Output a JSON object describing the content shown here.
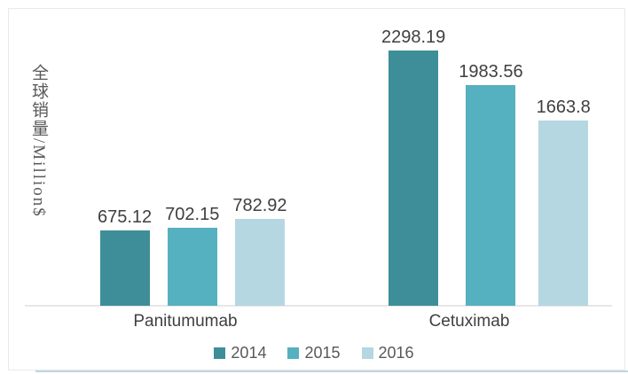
{
  "chart_data": {
    "type": "bar",
    "title": "",
    "ylabel": "全球销量/Million$",
    "xlabel": "",
    "categories": [
      "Panitumumab",
      "Cetuximab"
    ],
    "series": [
      {
        "name": "2014",
        "color": "#3e8e99",
        "values": [
          675.12,
          2298.19
        ],
        "labels": [
          "675.12",
          "2298.19"
        ]
      },
      {
        "name": "2015",
        "color": "#55b0bf",
        "values": [
          702.15,
          1983.56
        ],
        "labels": [
          "702.15",
          "1983.56"
        ]
      },
      {
        "name": "2016",
        "color": "#b5d7e1",
        "values": [
          782.92,
          1663.8
        ],
        "labels": [
          "782.92",
          "1663.8"
        ]
      }
    ],
    "ylim": [
      0,
      2600
    ],
    "grid": false,
    "legend_position": "bottom",
    "value_labels_shown": true
  },
  "legend": {
    "items": [
      {
        "label": "2014",
        "color": "#3e8e99"
      },
      {
        "label": "2015",
        "color": "#55b0bf"
      },
      {
        "label": "2016",
        "color": "#b5d7e1"
      }
    ]
  },
  "style": {
    "axis_line_color": "#e7e7e7",
    "frame_border_color": "#e9e9e9",
    "bottom_accent_color": "#bcd6e6",
    "text_color": "#3f3f3f"
  }
}
